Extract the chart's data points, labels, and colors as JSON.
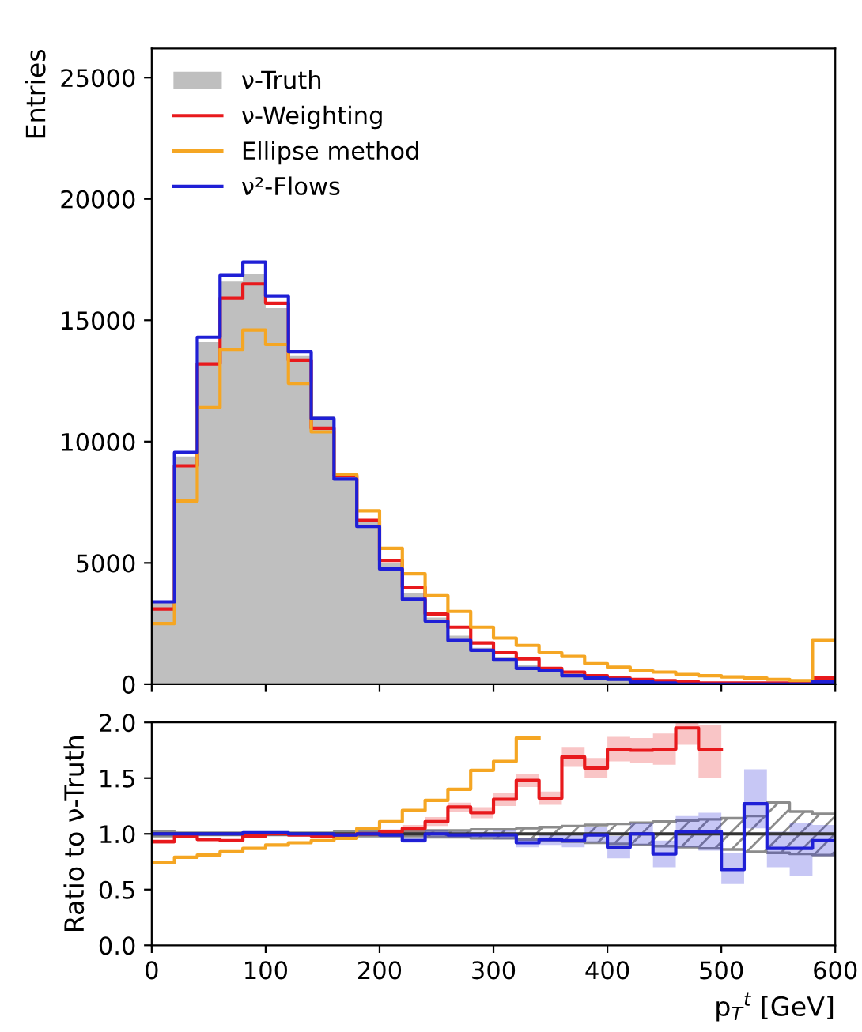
{
  "chart_data": [
    {
      "type": "histogram",
      "ylabel": "Entries",
      "bins": [
        0,
        20,
        40,
        60,
        80,
        100,
        120,
        140,
        160,
        180,
        200,
        220,
        240,
        260,
        280,
        300,
        320,
        340,
        360,
        380,
        400,
        420,
        440,
        460,
        480,
        500,
        520,
        540,
        560,
        580,
        600
      ],
      "xlim": [
        0,
        600
      ],
      "xticks": [
        0,
        100,
        200,
        300,
        400,
        500,
        600
      ],
      "ylim": [
        0,
        26200
      ],
      "yticks": [
        0,
        5000,
        10000,
        15000,
        20000,
        25000
      ],
      "tick_labels": "y",
      "legend": "top left",
      "grid": false,
      "series": [
        {
          "name": "ν-Truth",
          "color": "#bfbfbf",
          "values": [
            3450,
            9380,
            14100,
            16600,
            16900,
            15500,
            13550,
            11050,
            8700,
            6700,
            5000,
            3750,
            2750,
            2000,
            1500,
            1100,
            800,
            600,
            450,
            350,
            250,
            150,
            100,
            100,
            50,
            50,
            50,
            50,
            0,
            200
          ]
        },
        {
          "name": "ν-Weighting",
          "type": "step",
          "color": "#e8191c",
          "x": [
            0,
            20,
            40,
            60,
            80,
            100,
            120,
            140,
            160,
            180,
            200,
            220,
            240,
            260,
            280,
            300,
            320,
            340,
            360,
            380,
            400,
            420,
            440,
            460,
            480,
            500,
            520,
            540,
            560,
            580,
            600
          ],
          "values": [
            3100,
            9000,
            13200,
            15900,
            16500,
            15700,
            13350,
            10550,
            8600,
            6750,
            5100,
            4000,
            2900,
            2350,
            1700,
            1300,
            1050,
            650,
            500,
            350,
            250,
            200,
            150,
            100,
            50,
            50,
            50,
            50,
            50,
            250,
            250
          ]
        },
        {
          "name": "Ellipse method",
          "type": "step",
          "color": "#f5a623",
          "x": [
            0,
            20,
            40,
            60,
            80,
            100,
            120,
            140,
            160,
            180,
            200,
            220,
            240,
            260,
            280,
            300,
            320,
            340,
            360,
            380,
            400,
            420,
            440,
            460,
            480,
            500,
            520,
            540,
            560,
            580,
            600
          ],
          "values": [
            2500,
            7550,
            11400,
            13800,
            14600,
            14000,
            12400,
            10400,
            8650,
            7150,
            5600,
            4550,
            3650,
            3000,
            2350,
            1900,
            1600,
            1300,
            1150,
            850,
            700,
            550,
            500,
            400,
            350,
            300,
            250,
            200,
            150,
            1800,
            1800
          ]
        },
        {
          "name": "ν²-Flows",
          "type": "step",
          "color": "#1f1fd6",
          "x": [
            0,
            20,
            40,
            60,
            80,
            100,
            120,
            140,
            160,
            180,
            200,
            220,
            240,
            260,
            280,
            300,
            320,
            340,
            360,
            380,
            400,
            420,
            440,
            460,
            480,
            500,
            520,
            540,
            560,
            580,
            600
          ],
          "values": [
            3400,
            9550,
            14300,
            16850,
            17400,
            16000,
            13700,
            10950,
            8450,
            6500,
            4750,
            3500,
            2600,
            1800,
            1400,
            1000,
            650,
            550,
            350,
            250,
            200,
            100,
            50,
            0,
            0,
            0,
            0,
            0,
            0,
            100,
            100
          ]
        }
      ]
    },
    {
      "type": "step",
      "xlabel": "p$_{T}$$^{t}$ [GeV]",
      "ylabel": "Ratio to ν-Truth",
      "xlim": [
        0,
        600
      ],
      "xticks": [
        0,
        100,
        200,
        300,
        400,
        500,
        600
      ],
      "ylim": [
        0,
        2
      ],
      "yticks": [
        {
          "value": 0,
          "label": "0.0"
        },
        {
          "value": 0.5,
          "label": "0.5"
        },
        {
          "value": 1,
          "label": "1.0"
        },
        {
          "value": 1.5,
          "label": "1.5"
        },
        {
          "value": 2,
          "label": "2.0"
        }
      ],
      "grid": false,
      "series": [
        {
          "color": "#333333",
          "x": [
            0,
            20,
            40,
            60,
            80,
            100,
            120,
            140,
            160,
            180,
            200,
            220,
            240,
            260,
            280,
            300,
            320,
            340,
            360,
            380,
            400,
            420,
            440,
            460,
            480,
            500,
            520,
            540,
            560,
            580,
            600
          ],
          "values": [
            1,
            1,
            1,
            1,
            1,
            1,
            1,
            1,
            1,
            1,
            1,
            1,
            1,
            1,
            1,
            1,
            1,
            1,
            1,
            1,
            1,
            1,
            1,
            1,
            1,
            1,
            1,
            1,
            1,
            1,
            1
          ],
          "lower": [
            0.98,
            0.99,
            0.99,
            0.99,
            0.99,
            0.99,
            0.99,
            0.99,
            0.98,
            0.98,
            0.98,
            0.98,
            0.97,
            0.97,
            0.96,
            0.96,
            0.95,
            0.94,
            0.93,
            0.92,
            0.91,
            0.9,
            0.89,
            0.88,
            0.87,
            0.86,
            0.84,
            0.83,
            0.82,
            0.81,
            0.81
          ],
          "upper": [
            1.02,
            1.01,
            1.01,
            1.01,
            1.01,
            1.01,
            1.01,
            1.01,
            1.02,
            1.02,
            1.02,
            1.02,
            1.03,
            1.03,
            1.04,
            1.04,
            1.05,
            1.06,
            1.07,
            1.08,
            1.09,
            1.1,
            1.11,
            1.12,
            1.13,
            1.14,
            1.16,
            1.28,
            1.2,
            1.18,
            1.18
          ]
        },
        {
          "color": "#f5a623",
          "x": [
            0,
            20,
            40,
            60,
            80,
            100,
            120,
            140,
            160,
            180,
            200,
            220,
            240,
            260,
            280,
            300,
            320,
            340
          ],
          "values": [
            0.74,
            0.79,
            0.81,
            0.84,
            0.87,
            0.9,
            0.92,
            0.94,
            0.96,
            1.05,
            1.11,
            1.21,
            1.3,
            1.4,
            1.57,
            1.65,
            1.86,
            1.86
          ]
        },
        {
          "color": "#e8191c",
          "x": [
            0,
            20,
            40,
            60,
            80,
            100,
            120,
            140,
            160,
            180,
            200,
            220,
            240,
            260,
            280,
            300,
            320,
            340,
            360,
            380,
            400,
            420,
            440,
            460,
            480,
            500
          ],
          "values": [
            0.93,
            0.98,
            0.95,
            0.94,
            0.98,
            1.0,
            0.99,
            0.98,
            0.99,
            1.0,
            1.02,
            1.05,
            1.11,
            1.24,
            1.19,
            1.31,
            1.48,
            1.32,
            1.69,
            1.59,
            1.76,
            1.75,
            1.76,
            1.95,
            1.76,
            1.76
          ],
          "lower": [
            0.91,
            0.97,
            0.94,
            0.93,
            0.97,
            0.99,
            0.98,
            0.97,
            0.98,
            0.98,
            1.0,
            1.02,
            1.07,
            1.2,
            1.14,
            1.25,
            1.42,
            1.26,
            1.6,
            1.5,
            1.65,
            1.64,
            1.62,
            1.8,
            1.5,
            1.5
          ],
          "upper": [
            0.95,
            0.99,
            0.96,
            0.95,
            0.99,
            1.01,
            1.0,
            0.99,
            1.0,
            1.02,
            1.04,
            1.08,
            1.15,
            1.28,
            1.24,
            1.37,
            1.54,
            1.38,
            1.78,
            1.68,
            1.87,
            1.86,
            1.9,
            2.0,
            1.98,
            1.98
          ]
        },
        {
          "color": "#1f1fd6",
          "x": [
            0,
            20,
            40,
            60,
            80,
            100,
            120,
            140,
            160,
            180,
            200,
            220,
            240,
            260,
            280,
            300,
            320,
            340,
            360,
            380,
            400,
            420,
            440,
            460,
            480,
            500,
            520,
            540,
            560,
            580,
            600
          ],
          "values": [
            1.0,
            1.0,
            1.0,
            1.0,
            1.01,
            1.01,
            1.0,
            1.0,
            0.99,
            1.0,
            0.99,
            0.94,
            1.0,
            0.99,
            0.99,
            0.99,
            0.92,
            0.95,
            0.94,
            0.99,
            0.88,
            1.0,
            0.82,
            1.02,
            1.02,
            0.68,
            1.27,
            0.87,
            0.87,
            0.94,
            0.94
          ],
          "lower": [
            0.99,
            0.99,
            0.99,
            0.99,
            1.0,
            1.0,
            0.99,
            0.99,
            0.98,
            0.98,
            0.97,
            0.92,
            0.97,
            0.96,
            0.96,
            0.95,
            0.88,
            0.9,
            0.88,
            0.92,
            0.78,
            0.9,
            0.7,
            0.88,
            0.85,
            0.55,
            1.05,
            0.7,
            0.62,
            0.8,
            0.8
          ],
          "upper": [
            1.01,
            1.01,
            1.01,
            1.01,
            1.02,
            1.02,
            1.01,
            1.01,
            1.0,
            1.02,
            1.01,
            0.96,
            1.03,
            1.02,
            1.02,
            1.03,
            0.96,
            1.0,
            1.0,
            1.06,
            0.98,
            1.1,
            0.94,
            1.16,
            1.19,
            0.83,
            1.58,
            1.02,
            1.1,
            1.08,
            1.08
          ]
        }
      ]
    }
  ]
}
